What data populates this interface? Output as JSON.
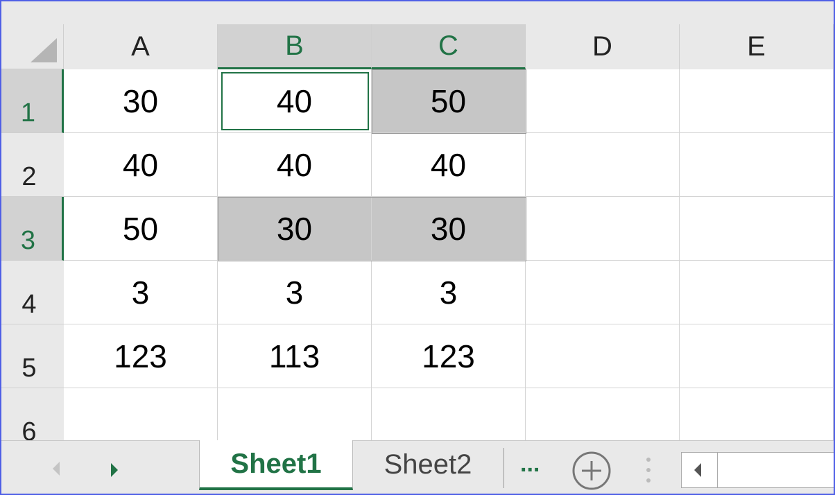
{
  "columns": [
    "A",
    "B",
    "C",
    "D",
    "E"
  ],
  "rows": [
    "1",
    "2",
    "3",
    "4",
    "5",
    "6"
  ],
  "cells": [
    [
      "30",
      "40",
      "50",
      "",
      ""
    ],
    [
      "40",
      "40",
      "40",
      "",
      ""
    ],
    [
      "50",
      "30",
      "30",
      "",
      ""
    ],
    [
      "3",
      "3",
      "3",
      "",
      ""
    ],
    [
      "123",
      "113",
      "123",
      "",
      ""
    ],
    [
      "",
      "",
      "",
      "",
      ""
    ]
  ],
  "active_cell": "B1",
  "selected_ranges": [
    "B1",
    "C1",
    "B3:C3"
  ],
  "accent_color": "#217346",
  "sheet_tabs": [
    {
      "label": "Sheet1",
      "active": true
    },
    {
      "label": "Sheet2",
      "active": false
    }
  ],
  "more_tabs_label": "...",
  "icons": {
    "select_all": "select-all-triangle",
    "prev": "chevron-left",
    "next": "chevron-right",
    "add": "plus-circle",
    "scroll_left": "scroll-left-arrow"
  }
}
